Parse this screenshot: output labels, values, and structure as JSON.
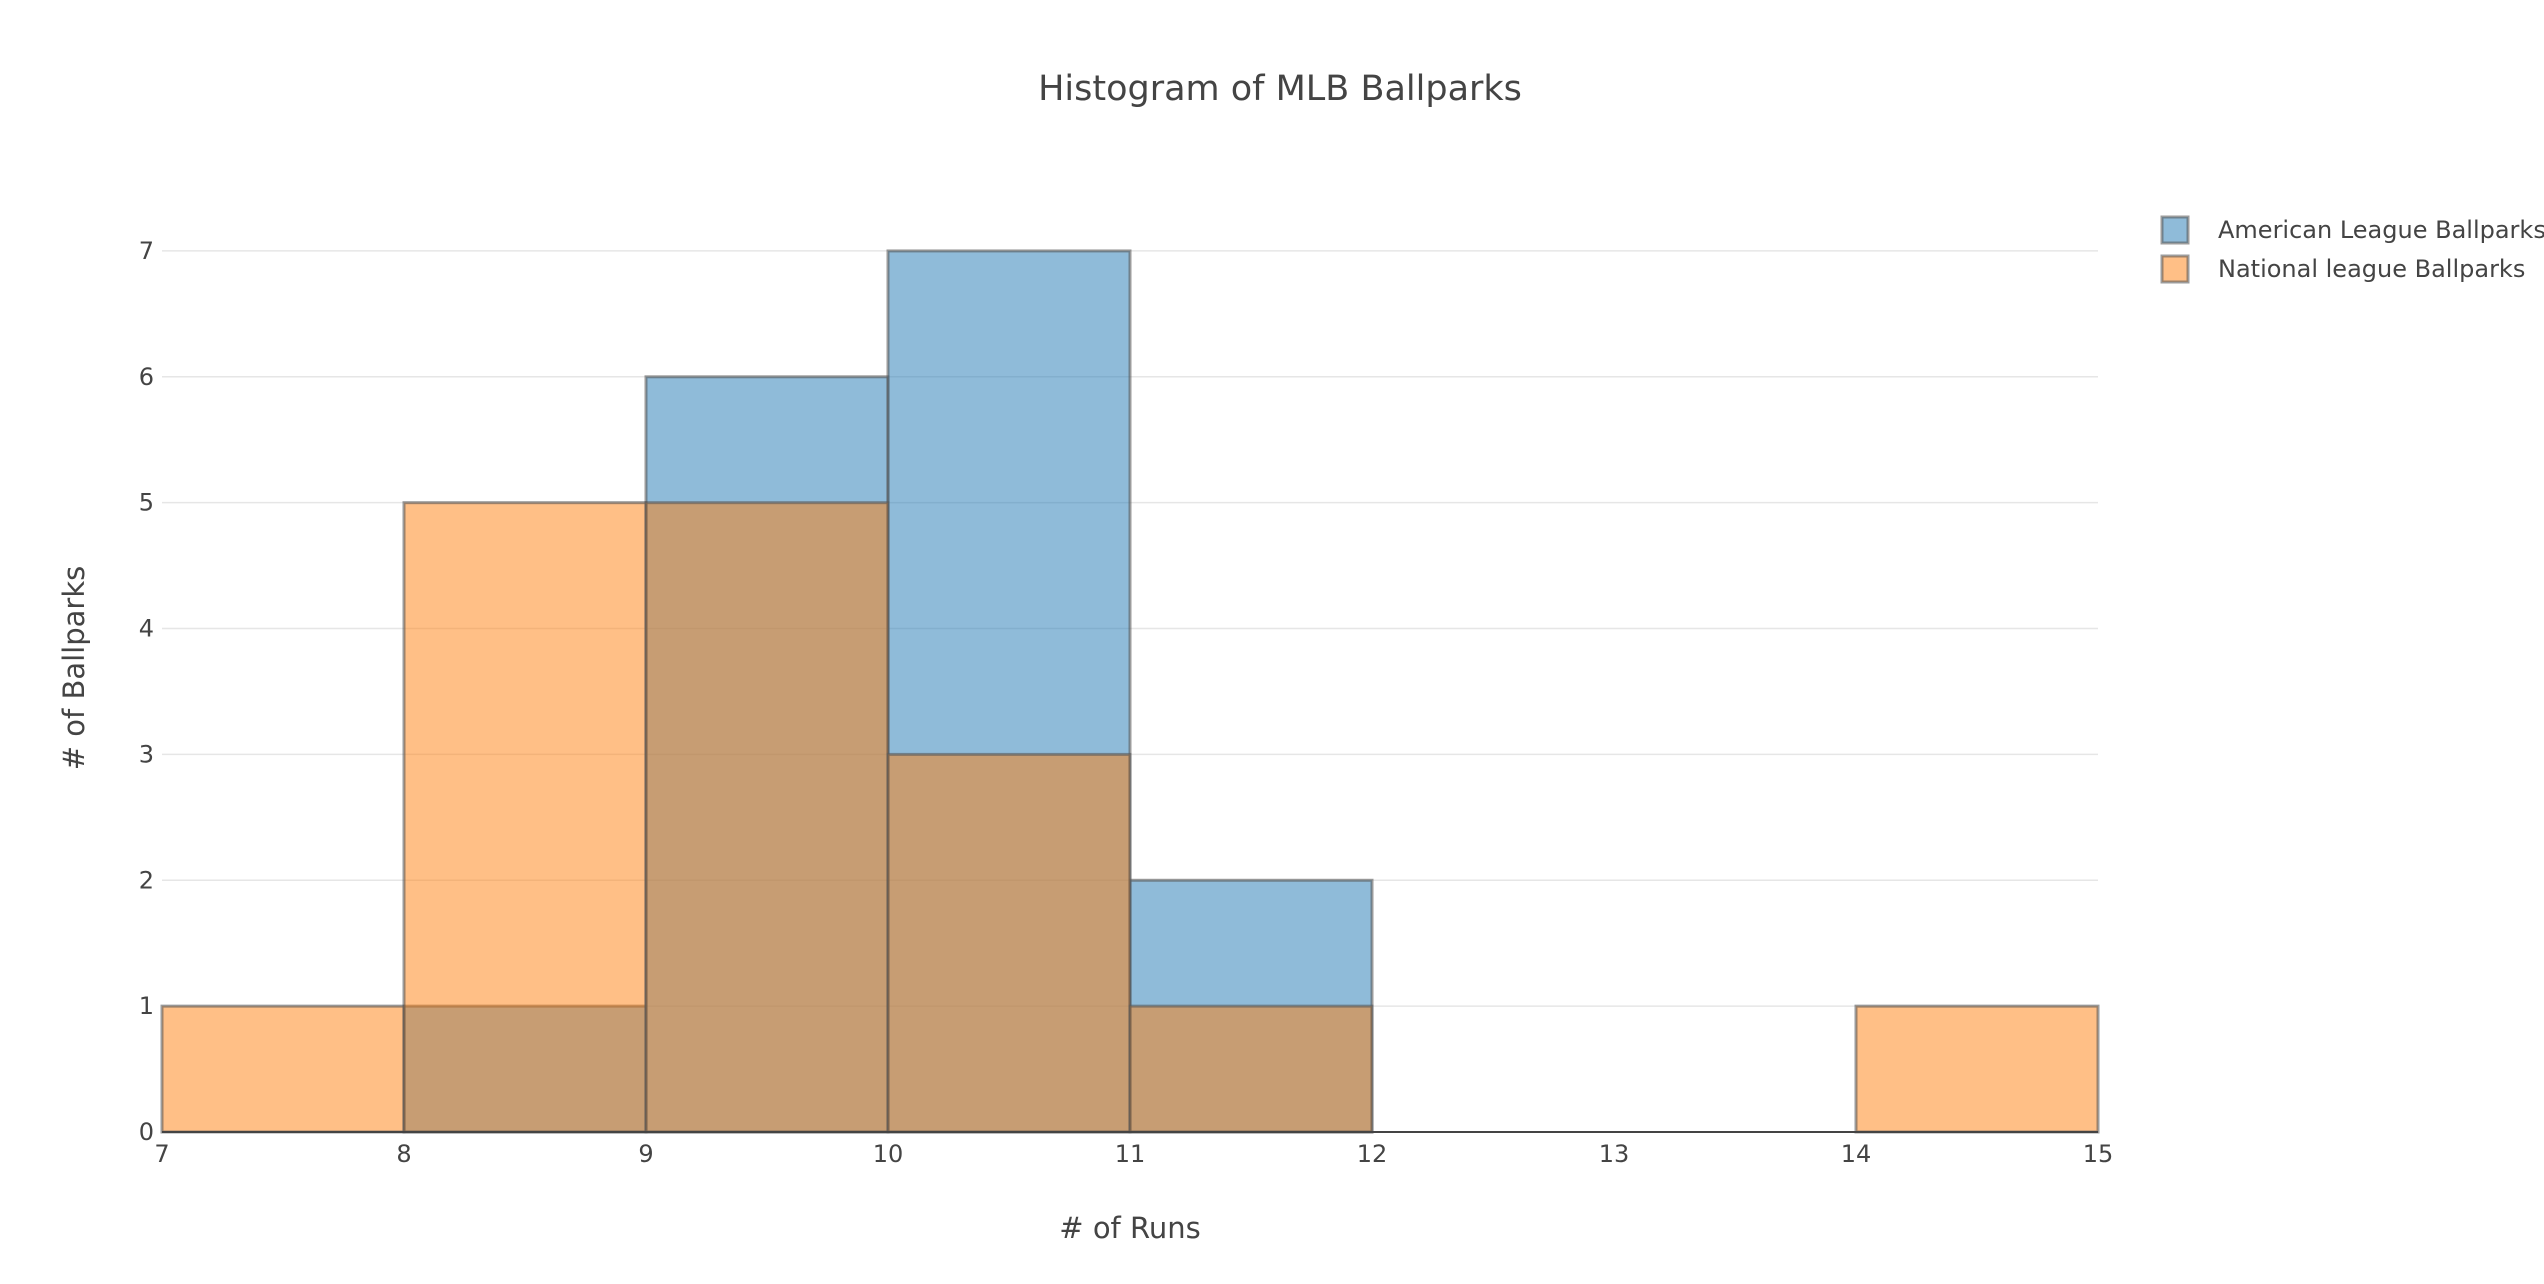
{
  "chart_data": {
    "type": "bar",
    "title": "Histogram of MLB Ballparks",
    "xlabel": "# of Runs",
    "ylabel": "# of Ballparks",
    "xlim": [
      7,
      15
    ],
    "ylim": [
      0,
      7.5
    ],
    "bin_width": 1,
    "x_ticks": [
      7,
      8,
      9,
      10,
      11,
      12,
      13,
      14,
      15
    ],
    "y_ticks": [
      0,
      1,
      2,
      3,
      4,
      5,
      6,
      7
    ],
    "grid": true,
    "barmode": "overlay",
    "legend_position": "top-right",
    "series": [
      {
        "name": "American League Ballparks",
        "color": "#1f77b4",
        "bins": [
          {
            "x0": 8,
            "x1": 9,
            "count": 1
          },
          {
            "x0": 9,
            "x1": 10,
            "count": 6
          },
          {
            "x0": 10,
            "x1": 11,
            "count": 7
          },
          {
            "x0": 11,
            "x1": 12,
            "count": 2
          }
        ]
      },
      {
        "name": "National league Ballparks",
        "color": "#ff7f0e",
        "bins": [
          {
            "x0": 7,
            "x1": 8,
            "count": 1
          },
          {
            "x0": 8,
            "x1": 9,
            "count": 5
          },
          {
            "x0": 9,
            "x1": 10,
            "count": 5
          },
          {
            "x0": 10,
            "x1": 11,
            "count": 3
          },
          {
            "x0": 11,
            "x1": 12,
            "count": 1
          },
          {
            "x0": 14,
            "x1": 15,
            "count": 1
          }
        ]
      }
    ]
  }
}
